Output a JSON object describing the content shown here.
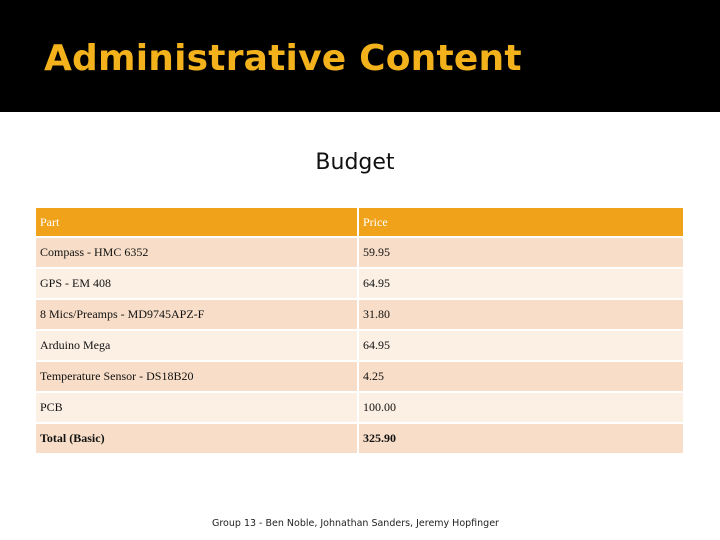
{
  "header": {
    "title": "Administrative Content"
  },
  "main": {
    "subtitle": "Budget",
    "table": {
      "columns": [
        "Part",
        "Price"
      ],
      "rows": [
        {
          "part": "Compass - HMC 6352",
          "price": "59.95"
        },
        {
          "part": "GPS - EM 408",
          "price": "64.95"
        },
        {
          "part": "8 Mics/Preamps - MD9745APZ-F",
          "price": "31.80"
        },
        {
          "part": "Arduino Mega",
          "price": "64.95"
        },
        {
          "part": "Temperature Sensor - DS18B20",
          "price": "4.25"
        },
        {
          "part": "PCB",
          "price": "100.00"
        }
      ],
      "total": {
        "part": "Total (Basic)",
        "price": "325.90"
      }
    }
  },
  "footer": {
    "text": "Group 13 - Ben Noble, Johnathan Sanders, Jeremy Hopfinger"
  },
  "colors": {
    "title": "#f3b21b",
    "header_row": "#f0a21a",
    "row_odd": "#f8dec8",
    "row_even": "#fcefe4"
  }
}
